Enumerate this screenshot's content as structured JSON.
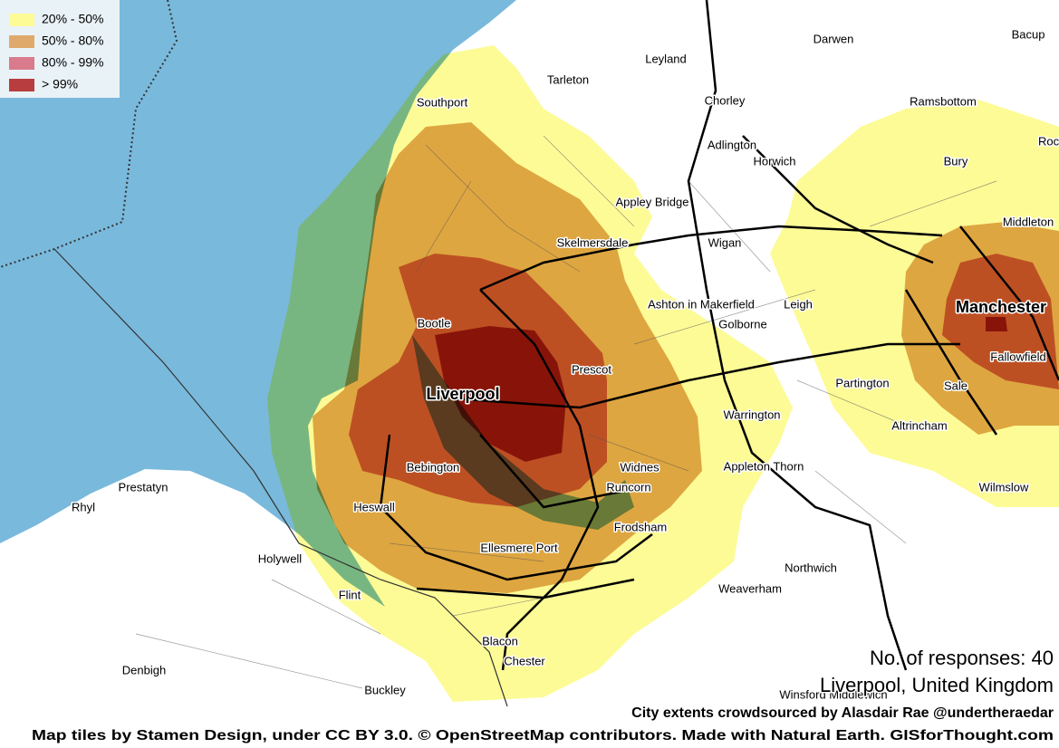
{
  "legend": {
    "items": [
      {
        "label": "20% - 50%",
        "color": "#fdfb96"
      },
      {
        "label": "50% - 80%",
        "color": "#e0a96c"
      },
      {
        "label": "80% - 99%",
        "color": "#d97b8c"
      },
      {
        "label": "> 99%",
        "color": "#b83d3e"
      }
    ]
  },
  "places": [
    {
      "name": "Darwen"
    },
    {
      "name": "Bacup"
    },
    {
      "name": "Leyland"
    },
    {
      "name": "Tarleton"
    },
    {
      "name": "Southport"
    },
    {
      "name": "Chorley"
    },
    {
      "name": "Ramsbottom"
    },
    {
      "name": "Rochdale"
    },
    {
      "name": "Adlington"
    },
    {
      "name": "Horwich"
    },
    {
      "name": "Bury"
    },
    {
      "name": "Appley Bridge"
    },
    {
      "name": "Middleton"
    },
    {
      "name": "Skelmersdale"
    },
    {
      "name": "Wigan"
    },
    {
      "name": "Ashton in Makerfield"
    },
    {
      "name": "Leigh"
    },
    {
      "name": "Bootle"
    },
    {
      "name": "Golborne"
    },
    {
      "name": "Prescot"
    },
    {
      "name": "Fallowfield"
    },
    {
      "name": "Partington"
    },
    {
      "name": "Sale"
    },
    {
      "name": "Warrington"
    },
    {
      "name": "Altrincham"
    },
    {
      "name": "Bebington"
    },
    {
      "name": "Widnes"
    },
    {
      "name": "Appleton Thorn"
    },
    {
      "name": "Runcorn"
    },
    {
      "name": "Wilmslow"
    },
    {
      "name": "Prestatyn"
    },
    {
      "name": "Rhyl"
    },
    {
      "name": "Heswall"
    },
    {
      "name": "Frodsham"
    },
    {
      "name": "Ellesmere Port"
    },
    {
      "name": "Holywell"
    },
    {
      "name": "Northwich"
    },
    {
      "name": "Weaverham"
    },
    {
      "name": "Flint"
    },
    {
      "name": "Blacon"
    },
    {
      "name": "Chester"
    },
    {
      "name": "Denbigh"
    },
    {
      "name": "Buckley"
    },
    {
      "name": "Winsford Middlewich"
    }
  ],
  "major_places": [
    {
      "name": "Liverpool"
    },
    {
      "name": "Manchester"
    }
  ],
  "info": {
    "responses": "No. of responses: 40",
    "city": "Liverpool, United Kingdom",
    "credit": "City extents crowdsourced by Alasdair Rae @undertheraedar",
    "attribution": "Map tiles by Stamen Design, under CC BY 3.0. © OpenStreetMap contributors. Made with Natural Earth. GISforThought.com"
  }
}
